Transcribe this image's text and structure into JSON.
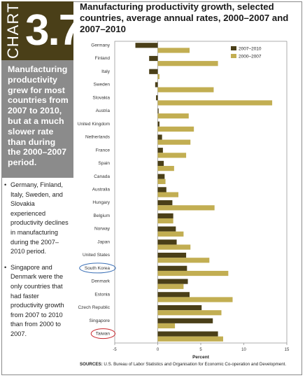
{
  "chart_label": {
    "word": "CHART",
    "number": "3.7"
  },
  "title": "Manufacturing productivity growth, selected countries, average annual rates, 2000–2007 and 2007–2010",
  "highlight": "Manufacturing productivity grew for most countries from 2007 to 2010, but at a much slower rate than during the 2000–2007 period.",
  "bullets": [
    "Germany, Finland, Italy, Sweden, and Slovakia experienced productivity declines in manufacturing during the 2007–2010 period.",
    "Singapore and Denmark were the only countries that had faster productivity growth from 2007 to 2010 than from 2000 to 2007."
  ],
  "source": {
    "label": "SOURCES:",
    "text": "U.S. Bureau of Labor Statistics and Organisation for Economic Co-operation and Development."
  },
  "colors": {
    "dark": "#4a3f18",
    "light": "#c2ae52",
    "grey_box": "#8b8b8b",
    "circle_blue": "#3a6fb6",
    "circle_red": "#c8262c"
  },
  "chart_data": {
    "type": "bar",
    "orientation": "horizontal",
    "categories": [
      "Germany",
      "Finland",
      "Italy",
      "Sweden",
      "Slovakia",
      "Austria",
      "United Kingdom",
      "Netherlands",
      "France",
      "Spain",
      "Canada",
      "Australia",
      "Hungary",
      "Belgium",
      "Norway",
      "Japan",
      "United States",
      "South Korea",
      "Denmark",
      "Estonia",
      "Czech Republic",
      "Singapore",
      "Taiwan"
    ],
    "series": [
      {
        "name": "2007–2010",
        "values": [
          -2.6,
          -1.0,
          -1.0,
          -0.3,
          -0.2,
          0.1,
          0.2,
          0.5,
          0.6,
          0.7,
          0.8,
          1.0,
          1.7,
          1.8,
          2.1,
          2.2,
          3.3,
          3.4,
          3.5,
          3.7,
          5.1,
          6.4,
          7.0
        ]
      },
      {
        "name": "2000–2007",
        "values": [
          3.7,
          7.0,
          0.2,
          6.5,
          13.3,
          3.6,
          4.2,
          3.8,
          3.3,
          1.9,
          0.9,
          2.4,
          6.6,
          1.8,
          3.0,
          3.8,
          6.0,
          8.2,
          3.0,
          8.7,
          7.4,
          2.0,
          7.6
        ]
      }
    ],
    "xlabel": "Percent",
    "xlim": [
      -5,
      15
    ],
    "xticks": [
      "-5",
      "0",
      "5",
      "10",
      "15"
    ],
    "circled": [
      {
        "category": "South Korea",
        "color": "blue"
      },
      {
        "category": "Taiwan",
        "color": "red"
      }
    ],
    "legend": "top-right"
  }
}
